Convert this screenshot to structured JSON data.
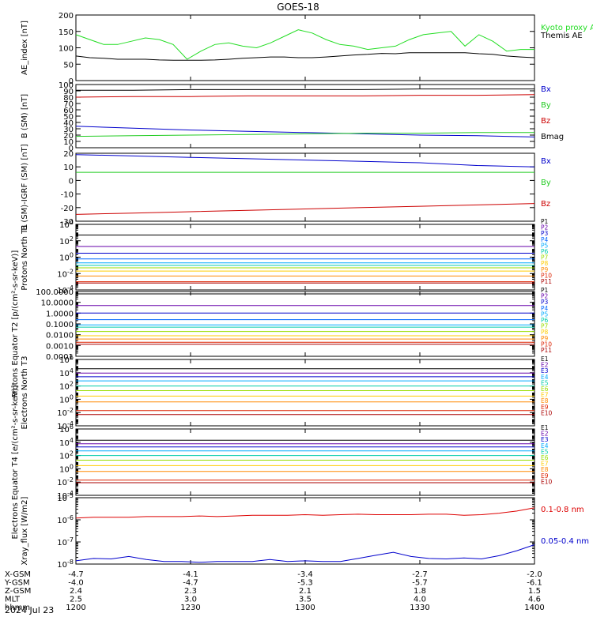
{
  "title": "GOES-18",
  "date": "2024 Jul 23",
  "time_axis": {
    "ticks": [
      "1200",
      "1230",
      "1300",
      "1330",
      "1400"
    ],
    "xlim": [
      "12:00",
      "14:00"
    ],
    "rows": [
      {
        "label": "X-GSM",
        "values": [
          "-4.7",
          "-4.1",
          "-3.4",
          "-2.7",
          "-2.0"
        ]
      },
      {
        "label": "Y-GSM",
        "values": [
          "-4.0",
          "-4.7",
          "-5.3",
          "-5.7",
          "-6.1"
        ]
      },
      {
        "label": "Z-GSM",
        "values": [
          "2.4",
          "2.3",
          "2.1",
          "1.8",
          "1.5"
        ]
      },
      {
        "label": "MLT",
        "values": [
          "2.5",
          "3.0",
          "3.5",
          "4.0",
          "4.6"
        ]
      },
      {
        "label": "hhmm",
        "values": [
          "1200",
          "1230",
          "1300",
          "1330",
          "1400"
        ]
      }
    ]
  },
  "chart_data": [
    {
      "type": "line",
      "ylabel": "AE_index [nT]",
      "ylim": [
        0,
        200
      ],
      "yticks": [
        "0",
        "50",
        "100",
        "150",
        "200"
      ],
      "series": [
        {
          "name": "Kyoto proxy AE",
          "color": "#22dd22",
          "values": [
            140,
            125,
            110,
            110,
            120,
            130,
            125,
            110,
            65,
            90,
            110,
            115,
            105,
            100,
            115,
            135,
            155,
            145,
            125,
            110,
            105,
            95,
            100,
            105,
            125,
            140,
            145,
            150,
            105,
            140,
            120,
            90,
            95,
            95
          ]
        },
        {
          "name": "Themis AE",
          "color": "#000000",
          "values": [
            75,
            70,
            68,
            65,
            65,
            65,
            63,
            62,
            62,
            62,
            63,
            65,
            68,
            70,
            72,
            72,
            70,
            70,
            72,
            75,
            78,
            80,
            83,
            82,
            85,
            85,
            85,
            85,
            85,
            82,
            80,
            75,
            72,
            70
          ]
        }
      ]
    },
    {
      "type": "line",
      "ylabel": "B (SM) [nT]",
      "ylim": [
        0,
        100
      ],
      "yticks": [
        "0",
        "10",
        "20",
        "30",
        "40",
        "50",
        "60",
        "70",
        "80",
        "90",
        "100"
      ],
      "series": [
        {
          "name": "Bx",
          "color": "#0000cc",
          "values": [
            34,
            31,
            28,
            26,
            24,
            22,
            20,
            19,
            17
          ]
        },
        {
          "name": "By",
          "color": "#22cc22",
          "values": [
            18,
            19,
            20,
            21,
            22,
            23,
            23,
            24,
            24
          ]
        },
        {
          "name": "Bz",
          "color": "#cc0000",
          "values": [
            80,
            81,
            81,
            82,
            82,
            82,
            83,
            83,
            84
          ]
        },
        {
          "name": "Bmag",
          "color": "#000000",
          "values": [
            91,
            91,
            92,
            92,
            92,
            92,
            93,
            93,
            93
          ]
        }
      ]
    },
    {
      "type": "line",
      "ylabel": "B (SM)-IGRF (SM) [nT]",
      "ylim": [
        -30,
        20
      ],
      "yticks": [
        "-30",
        "-20",
        "-10",
        "0",
        "10",
        "20"
      ],
      "series": [
        {
          "name": "Bx",
          "color": "#0000cc",
          "values": [
            19,
            18,
            17,
            16,
            15,
            14,
            13,
            11,
            10
          ]
        },
        {
          "name": "By",
          "color": "#22cc22",
          "values": [
            6,
            6,
            6,
            6,
            6,
            6,
            6,
            6,
            6
          ]
        },
        {
          "name": "Bz",
          "color": "#cc0000",
          "values": [
            -25,
            -24,
            -23,
            -22,
            -21,
            -20,
            -19,
            -18,
            -17
          ]
        }
      ]
    },
    {
      "type": "line",
      "ylabel": "Protons North T1",
      "yscale": "log",
      "ylim": [
        0.0001,
        10000
      ],
      "yticks": [
        "10^-4",
        "10^-2",
        "10^0",
        "10^2",
        "10^4"
      ],
      "series": [
        {
          "name": "P1",
          "color": "#000000",
          "values": [
            500,
            500
          ]
        },
        {
          "name": "P2",
          "color": "#6600aa",
          "values": [
            20,
            20
          ]
        },
        {
          "name": "P3",
          "color": "#0000cc",
          "values": [
            3,
            3
          ]
        },
        {
          "name": "P4",
          "color": "#0066ff",
          "values": [
            0.6,
            0.6
          ]
        },
        {
          "name": "P5",
          "color": "#00aaff",
          "values": [
            0.2,
            0.2
          ]
        },
        {
          "name": "P6",
          "color": "#00ccaa",
          "values": [
            0.1,
            0.1
          ]
        },
        {
          "name": "P7",
          "color": "#99dd00",
          "values": [
            0.05,
            0.05
          ]
        },
        {
          "name": "P8",
          "color": "#ffcc00",
          "values": [
            0.02,
            0.02
          ]
        },
        {
          "name": "P9",
          "color": "#ff8800",
          "values": [
            0.005,
            0.005
          ]
        },
        {
          "name": "P10",
          "color": "#dd2200",
          "values": [
            0.001,
            0.001
          ]
        },
        {
          "name": "P11",
          "color": "#aa0000",
          "values": [
            0.0007,
            0.0007
          ]
        }
      ]
    },
    {
      "type": "line",
      "ylabel": "Protons Equator T2 [p/(cm²-s-sr-keV)]",
      "yscale": "log",
      "ylim": [
        0.0001,
        100
      ],
      "yticks": [
        "0.0001",
        "0.0010",
        "0.0100",
        "0.1000",
        "1.0000",
        "10.0000",
        "100.0000"
      ],
      "series": [
        {
          "name": "P1",
          "color": "#000000",
          "values": [
            60,
            60
          ]
        },
        {
          "name": "P2",
          "color": "#6600aa",
          "values": [
            5,
            5
          ]
        },
        {
          "name": "P3",
          "color": "#0000cc",
          "values": [
            1,
            1
          ]
        },
        {
          "name": "P4",
          "color": "#0066ff",
          "values": [
            0.25,
            0.25
          ]
        },
        {
          "name": "P5",
          "color": "#00aaff",
          "values": [
            0.08,
            0.08
          ]
        },
        {
          "name": "P6",
          "color": "#00ccaa",
          "values": [
            0.05,
            0.05
          ]
        },
        {
          "name": "P7",
          "color": "#99dd00",
          "values": [
            0.02,
            0.02
          ]
        },
        {
          "name": "P8",
          "color": "#ffcc00",
          "values": [
            0.008,
            0.008
          ]
        },
        {
          "name": "P9",
          "color": "#ff8800",
          "values": [
            0.004,
            0.004
          ]
        },
        {
          "name": "P10",
          "color": "#dd2200",
          "values": [
            0.002,
            0.002
          ]
        },
        {
          "name": "P11",
          "color": "#aa0000",
          "values": [
            0.0013,
            0.0013
          ]
        }
      ]
    },
    {
      "type": "line",
      "ylabel": "Electrons North T3",
      "yscale": "log",
      "ylim": [
        0.0001,
        1000000
      ],
      "yticks": [
        "10^-4",
        "10^-2",
        "10^0",
        "10^2",
        "10^4",
        "10^6"
      ],
      "series": [
        {
          "name": "E1",
          "color": "#000000",
          "values": [
            40000,
            40000
          ]
        },
        {
          "name": "E2",
          "color": "#6600aa",
          "values": [
            9000,
            9000
          ]
        },
        {
          "name": "E3",
          "color": "#0000cc",
          "values": [
            2500,
            2500
          ]
        },
        {
          "name": "E4",
          "color": "#00aaff",
          "values": [
            600,
            600
          ]
        },
        {
          "name": "E5",
          "color": "#00ccaa",
          "values": [
            100,
            100
          ]
        },
        {
          "name": "E6",
          "color": "#99dd00",
          "values": [
            20,
            20
          ]
        },
        {
          "name": "E7",
          "color": "#ffcc00",
          "values": [
            3,
            3
          ]
        },
        {
          "name": "E8",
          "color": "#ff8800",
          "values": [
            0.4,
            0.4
          ]
        },
        {
          "name": "E9",
          "color": "#dd2200",
          "values": [
            0.02,
            0.02
          ]
        },
        {
          "name": "E10",
          "color": "#aa0000",
          "values": [
            0.005,
            0.005
          ]
        }
      ]
    },
    {
      "type": "line",
      "ylabel": "Electrons Equator T4 [e/(cm²-s-sr-keV)]",
      "yscale": "log",
      "ylim": [
        0.0001,
        1000000
      ],
      "yticks": [
        "10^-4",
        "10^-2",
        "10^0",
        "10^2",
        "10^4",
        "10^6"
      ],
      "series": [
        {
          "name": "E1",
          "color": "#000000",
          "values": [
            20000,
            20000
          ]
        },
        {
          "name": "E2",
          "color": "#6600aa",
          "values": [
            6000,
            6000
          ]
        },
        {
          "name": "E3",
          "color": "#0000cc",
          "values": [
            2000,
            2000
          ]
        },
        {
          "name": "E4",
          "color": "#00aaff",
          "values": [
            500,
            500
          ]
        },
        {
          "name": "E5",
          "color": "#00ccaa",
          "values": [
            100,
            100
          ]
        },
        {
          "name": "E6",
          "color": "#99dd00",
          "values": [
            20,
            20
          ]
        },
        {
          "name": "E7",
          "color": "#ffcc00",
          "values": [
            3,
            3
          ]
        },
        {
          "name": "E8",
          "color": "#ff8800",
          "values": [
            0.4,
            0.4
          ]
        },
        {
          "name": "E9",
          "color": "#dd2200",
          "values": [
            0.02,
            0.02
          ]
        },
        {
          "name": "E10",
          "color": "#aa0000",
          "values": [
            0.008,
            0.008
          ]
        }
      ]
    },
    {
      "type": "line",
      "ylabel": "Xray_flux [W/m2]",
      "yscale": "log",
      "ylim": [
        1e-08,
        1e-05
      ],
      "yticks": [
        "10^-8",
        "10^-7",
        "10^-6",
        "10^-5"
      ],
      "series": [
        {
          "name": "0.1-0.8 nm",
          "color": "#dd0000",
          "values": [
            1.2e-06,
            1.3e-06,
            1.3e-06,
            1.3e-06,
            1.4e-06,
            1.4e-06,
            1.4e-06,
            1.5e-06,
            1.4e-06,
            1.5e-06,
            1.6e-06,
            1.6e-06,
            1.6e-06,
            1.7e-06,
            1.6e-06,
            1.7e-06,
            1.8e-06,
            1.7e-06,
            1.7e-06,
            1.7e-06,
            1.8e-06,
            1.8e-06,
            1.6e-06,
            1.7e-06,
            2e-06,
            2.5e-06,
            3.5e-06
          ]
        },
        {
          "name": "0.05-0.4 nm",
          "color": "#0000cc",
          "values": [
            1.4e-08,
            1.8e-08,
            1.7e-08,
            2.2e-08,
            1.6e-08,
            1.3e-08,
            1.3e-08,
            1.2e-08,
            1.3e-08,
            1.3e-08,
            1.3e-08,
            1.6e-08,
            1.3e-08,
            1.4e-08,
            1.3e-08,
            1.3e-08,
            1.8e-08,
            2.5e-08,
            3.4e-08,
            2.2e-08,
            1.8e-08,
            1.7e-08,
            1.9e-08,
            1.7e-08,
            2.4e-08,
            4e-08,
            7.5e-08
          ]
        }
      ]
    }
  ]
}
